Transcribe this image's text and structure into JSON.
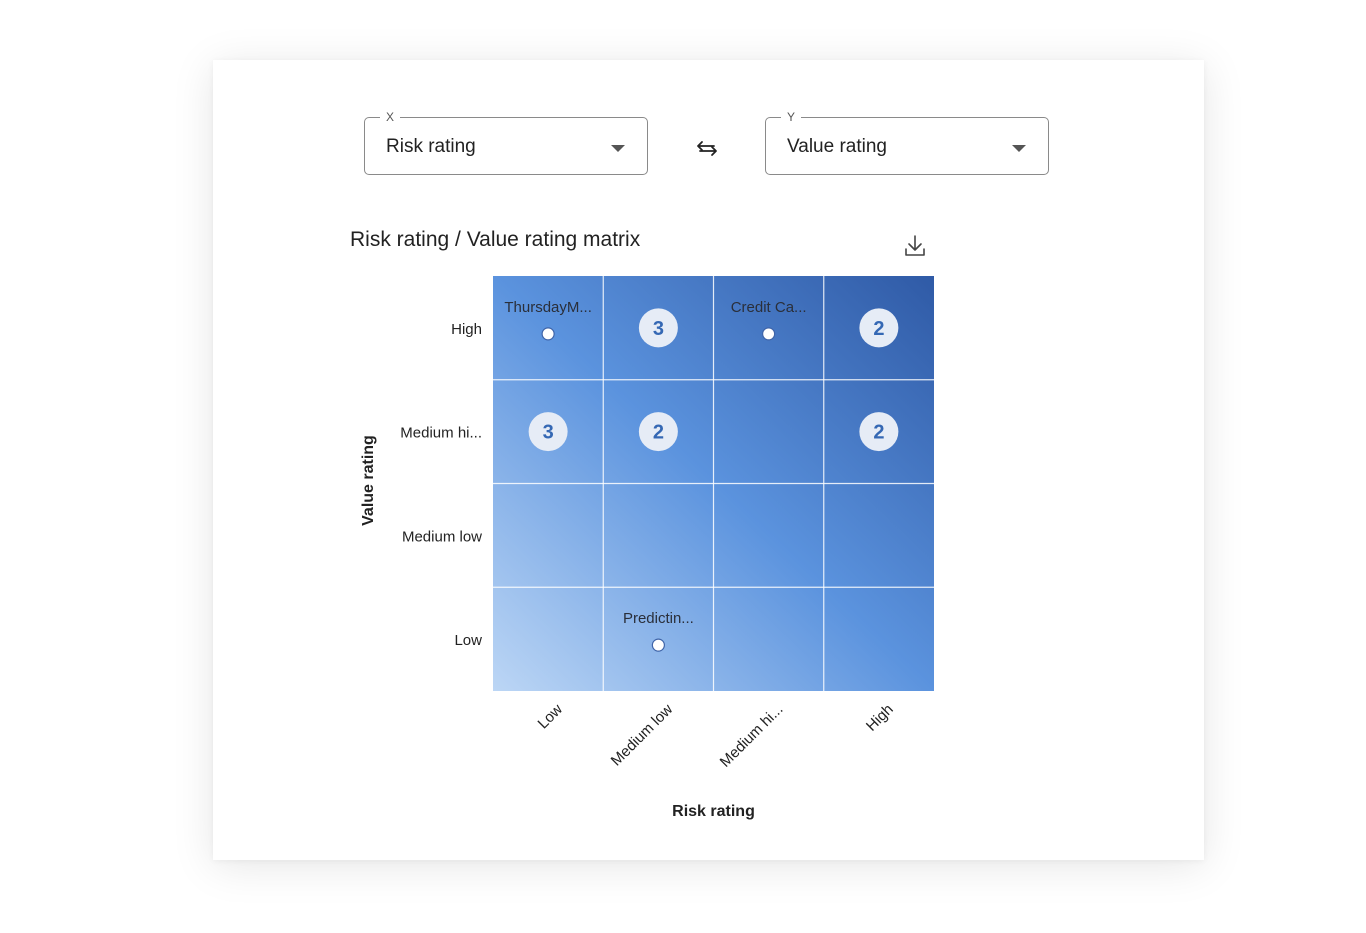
{
  "axis_selectors": {
    "x": {
      "legend": "X",
      "value": "Risk rating"
    },
    "y": {
      "legend": "Y",
      "value": "Value rating"
    }
  },
  "icons": {
    "swap": "swap-axes-icon",
    "download": "download-icon",
    "caret": "chevron-down-icon"
  },
  "chart_data": {
    "type": "heatmap",
    "title": "Risk rating / Value rating matrix",
    "xlabel": "Risk rating",
    "ylabel": "Value rating",
    "x_categories": [
      "Low",
      "Medium low",
      "Medium hi...",
      "High"
    ],
    "y_categories": [
      "Low",
      "Medium low",
      "Medium hi...",
      "High"
    ],
    "cells": [
      {
        "x": "Low",
        "y": "High",
        "label": "ThursdayM...",
        "count": 1
      },
      {
        "x": "Medium low",
        "y": "High",
        "count": 3
      },
      {
        "x": "Medium hi...",
        "y": "High",
        "label": "Credit Ca...",
        "count": 1
      },
      {
        "x": "High",
        "y": "High",
        "count": 2
      },
      {
        "x": "Low",
        "y": "Medium hi...",
        "count": 3
      },
      {
        "x": "Medium low",
        "y": "Medium hi...",
        "count": 2
      },
      {
        "x": "High",
        "y": "Medium hi...",
        "count": 2
      },
      {
        "x": "Medium low",
        "y": "Low",
        "label": "Predictin...",
        "count": 1
      }
    ],
    "gradient": {
      "low": "#bcd6f5",
      "mid": "#5b93de",
      "high": "#2f5aa6"
    },
    "badge_color": "#e6ecf6",
    "badge_text_color": "#3568b4"
  }
}
